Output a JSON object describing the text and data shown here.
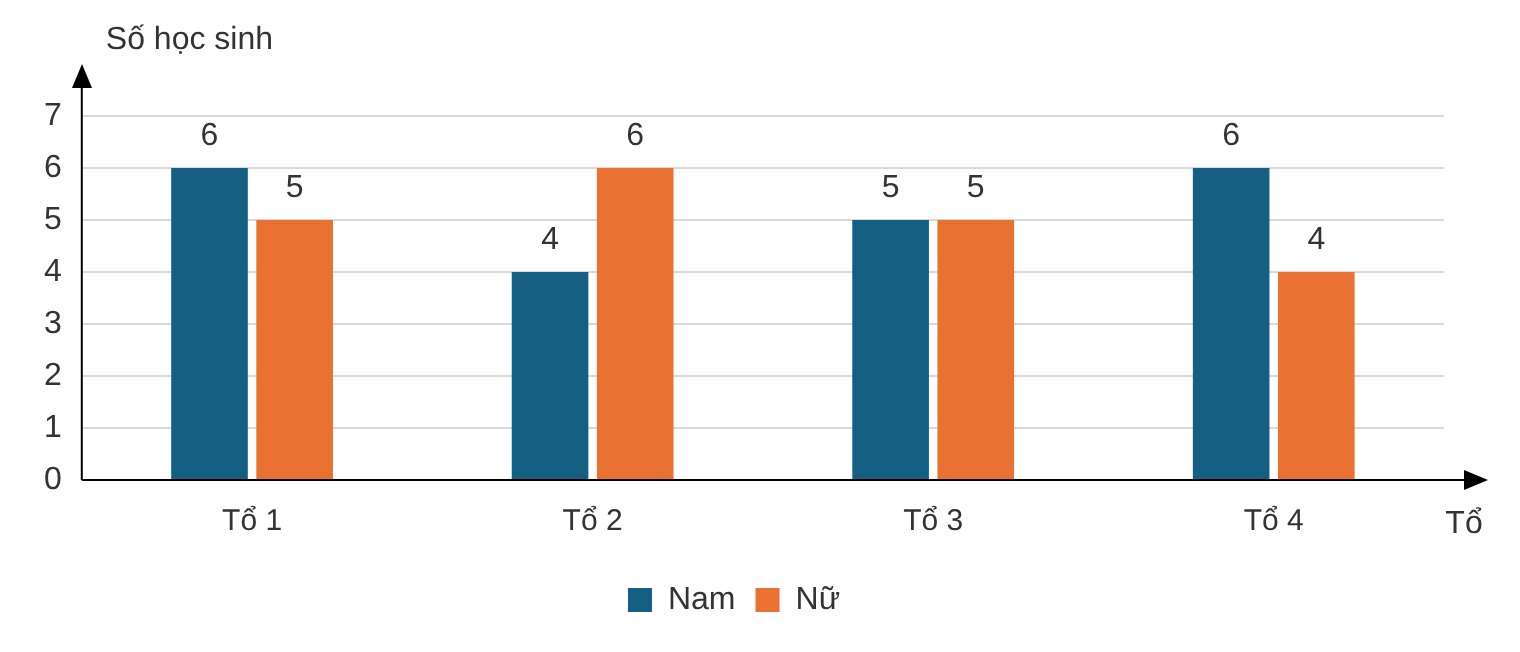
{
  "chart_data": {
    "type": "bar",
    "ylabel": "Số học sinh",
    "xlabel": "Tổ",
    "categories": [
      "Tổ 1",
      "Tổ 2",
      "Tổ 3",
      "Tổ 4"
    ],
    "series": [
      {
        "name": "Nam",
        "color": "#156082",
        "values": [
          6,
          4,
          5,
          6
        ]
      },
      {
        "name": "Nữ",
        "color": "#e97132",
        "values": [
          5,
          6,
          5,
          4
        ]
      }
    ],
    "ylim": [
      0,
      7
    ],
    "yticks": [
      0,
      1,
      2,
      3,
      4,
      5,
      6,
      7
    ],
    "grid": "y",
    "legend": "bottom",
    "data_labels": true
  }
}
